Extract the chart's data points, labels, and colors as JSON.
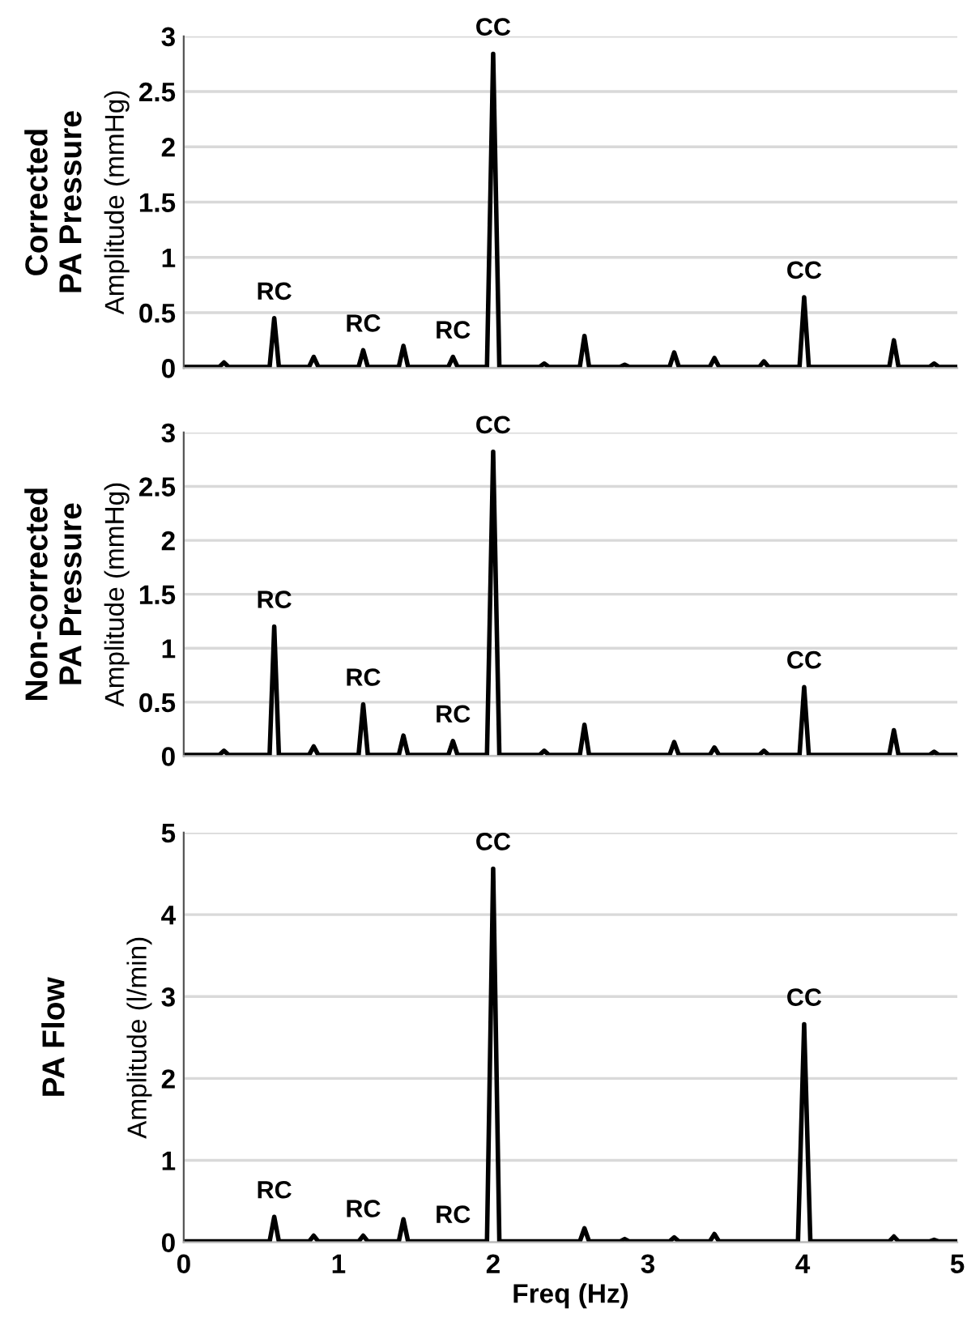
{
  "chart_data": [
    {
      "type": "line",
      "title": "Corrected\nPA Pressure",
      "ylabel": "Amplitude (mmHg)",
      "xlim": [
        0,
        5
      ],
      "xticks": [
        0,
        1,
        2,
        3,
        4,
        5
      ],
      "ylim": [
        0,
        3
      ],
      "yticks": [
        0,
        0.5,
        1,
        1.5,
        2,
        2.5,
        3
      ],
      "tick_labels": "y",
      "grid": "y",
      "marker": "none",
      "line_style": "solid",
      "series": [
        {
          "color": "#000000",
          "x": [
            0,
            0.23,
            0.26,
            0.29,
            0.555,
            0.585,
            0.615,
            0.81,
            0.84,
            0.87,
            1.13,
            1.16,
            1.19,
            1.39,
            1.42,
            1.45,
            1.71,
            1.74,
            1.77,
            1.96,
            2.0,
            2.04,
            2.3,
            2.33,
            2.36,
            2.56,
            2.59,
            2.62,
            2.82,
            2.85,
            2.88,
            3.14,
            3.17,
            3.2,
            3.4,
            3.43,
            3.46,
            3.72,
            3.75,
            3.78,
            3.98,
            4.01,
            4.04,
            4.56,
            4.59,
            4.62,
            4.82,
            4.85,
            4.88,
            5
          ],
          "values": [
            0.01,
            0.01,
            0.05,
            0.01,
            0.01,
            0.45,
            0.01,
            0.01,
            0.1,
            0.01,
            0.01,
            0.16,
            0.01,
            0.01,
            0.2,
            0.01,
            0.01,
            0.1,
            0.01,
            0.01,
            2.84,
            0.01,
            0.01,
            0.04,
            0.01,
            0.01,
            0.29,
            0.01,
            0.01,
            0.03,
            0.01,
            0.01,
            0.14,
            0.01,
            0.01,
            0.09,
            0.01,
            0.01,
            0.06,
            0.01,
            0.01,
            0.64,
            0.01,
            0.01,
            0.25,
            0.01,
            0.01,
            0.04,
            0.01,
            0.01
          ]
        }
      ],
      "annotations": [
        {
          "text": "RC",
          "x": 0.585,
          "y": 0.45
        },
        {
          "text": "RC",
          "x": 1.16,
          "y": 0.16
        },
        {
          "text": "RC",
          "x": 1.74,
          "y": 0.1
        },
        {
          "text": "CC",
          "x": 2.0,
          "y": 2.84
        },
        {
          "text": "CC",
          "x": 4.01,
          "y": 0.64
        }
      ]
    },
    {
      "type": "line",
      "title": "Non-corrected\nPA Pressure",
      "ylabel": "Amplitude (mmHg)",
      "xlim": [
        0,
        5
      ],
      "xticks": [
        0,
        1,
        2,
        3,
        4,
        5
      ],
      "ylim": [
        0,
        3
      ],
      "yticks": [
        0,
        0.5,
        1,
        1.5,
        2,
        2.5,
        3
      ],
      "tick_labels": "y",
      "grid": "y",
      "marker": "none",
      "line_style": "solid",
      "series": [
        {
          "color": "#000000",
          "x": [
            0,
            0.23,
            0.26,
            0.29,
            0.555,
            0.585,
            0.615,
            0.81,
            0.84,
            0.87,
            1.13,
            1.16,
            1.19,
            1.39,
            1.42,
            1.45,
            1.71,
            1.74,
            1.77,
            1.96,
            2.0,
            2.04,
            2.3,
            2.33,
            2.36,
            2.56,
            2.59,
            2.62,
            3.14,
            3.17,
            3.2,
            3.4,
            3.43,
            3.46,
            3.72,
            3.75,
            3.78,
            3.98,
            4.01,
            4.04,
            4.56,
            4.59,
            4.62,
            4.82,
            4.85,
            4.88,
            5
          ],
          "values": [
            0.01,
            0.01,
            0.05,
            0.01,
            0.01,
            1.2,
            0.01,
            0.01,
            0.09,
            0.01,
            0.01,
            0.48,
            0.01,
            0.01,
            0.19,
            0.01,
            0.01,
            0.14,
            0.01,
            0.01,
            2.82,
            0.01,
            0.01,
            0.05,
            0.01,
            0.01,
            0.29,
            0.01,
            0.01,
            0.13,
            0.01,
            0.01,
            0.08,
            0.01,
            0.01,
            0.05,
            0.01,
            0.01,
            0.64,
            0.01,
            0.01,
            0.24,
            0.01,
            0.01,
            0.04,
            0.01,
            0.01
          ]
        }
      ],
      "annotations": [
        {
          "text": "RC",
          "x": 0.585,
          "y": 1.2
        },
        {
          "text": "RC",
          "x": 1.16,
          "y": 0.48
        },
        {
          "text": "RC",
          "x": 1.74,
          "y": 0.14
        },
        {
          "text": "CC",
          "x": 2.0,
          "y": 2.82
        },
        {
          "text": "CC",
          "x": 4.01,
          "y": 0.64
        }
      ]
    },
    {
      "type": "line",
      "title": "PA Flow",
      "ylabel": "Amplitude (l/min)",
      "xlabel": "Freq (Hz)",
      "xlim": [
        0,
        5
      ],
      "xticks": [
        0,
        1,
        2,
        3,
        4,
        5
      ],
      "ylim": [
        0,
        5
      ],
      "yticks": [
        0,
        1,
        2,
        3,
        4,
        5
      ],
      "grid": "y",
      "marker": "none",
      "line_style": "solid",
      "series": [
        {
          "color": "#000000",
          "x": [
            0,
            0.555,
            0.585,
            0.615,
            0.81,
            0.84,
            0.87,
            1.13,
            1.16,
            1.19,
            1.39,
            1.42,
            1.45,
            1.96,
            2.0,
            2.04,
            2.56,
            2.59,
            2.62,
            2.82,
            2.85,
            2.88,
            3.14,
            3.17,
            3.2,
            3.4,
            3.43,
            3.46,
            3.97,
            4.01,
            4.05,
            4.56,
            4.59,
            4.62,
            4.82,
            4.85,
            4.88,
            5
          ],
          "values": [
            0.01,
            0.01,
            0.31,
            0.01,
            0.01,
            0.08,
            0.01,
            0.01,
            0.08,
            0.01,
            0.01,
            0.28,
            0.01,
            0.01,
            4.56,
            0.01,
            0.01,
            0.17,
            0.01,
            0.01,
            0.04,
            0.01,
            0.01,
            0.06,
            0.01,
            0.01,
            0.1,
            0.01,
            0.01,
            2.66,
            0.01,
            0.01,
            0.07,
            0.01,
            0.01,
            0.03,
            0.01,
            0.01
          ]
        }
      ],
      "annotations": [
        {
          "text": "RC",
          "x": 0.585,
          "y": 0.31
        },
        {
          "text": "RC",
          "x": 1.16,
          "y": 0.08
        },
        {
          "text": "RC",
          "x": 1.74,
          "y": 0.01
        },
        {
          "text": "CC",
          "x": 2.0,
          "y": 4.56
        },
        {
          "text": "CC",
          "x": 4.01,
          "y": 2.66
        }
      ]
    }
  ]
}
